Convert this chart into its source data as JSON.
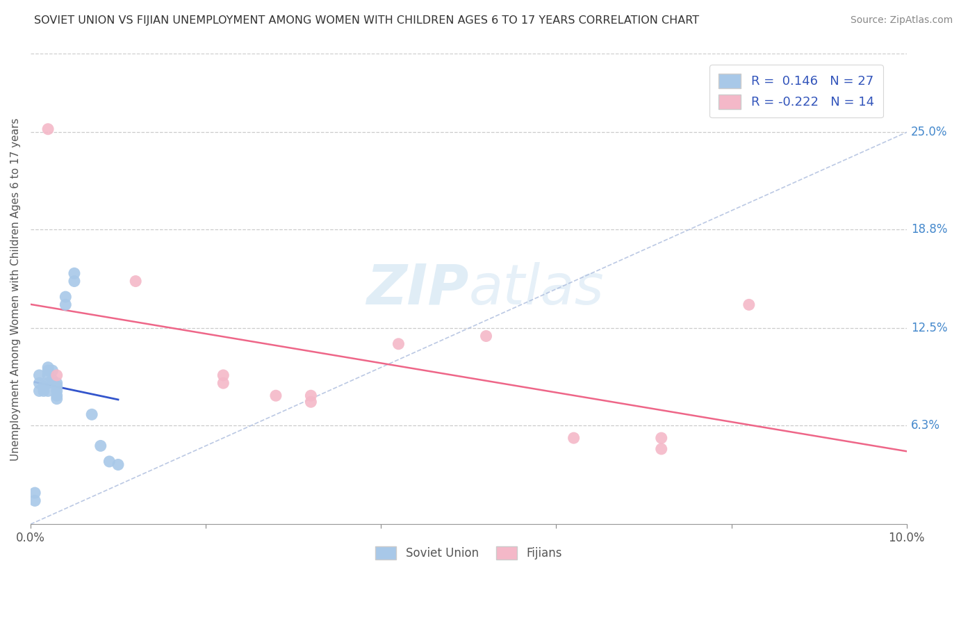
{
  "title": "SOVIET UNION VS FIJIAN UNEMPLOYMENT AMONG WOMEN WITH CHILDREN AGES 6 TO 17 YEARS CORRELATION CHART",
  "source": "Source: ZipAtlas.com",
  "ylabel": "Unemployment Among Women with Children Ages 6 to 17 years",
  "xlim": [
    0.0,
    0.1
  ],
  "ylim": [
    0.0,
    0.3
  ],
  "xticks": [
    0.0,
    0.02,
    0.04,
    0.06,
    0.08,
    0.1
  ],
  "xticklabels": [
    "0.0%",
    "",
    "",
    "",
    "",
    "10.0%"
  ],
  "ytick_right_labels": [
    "25.0%",
    "18.8%",
    "12.5%",
    "6.3%"
  ],
  "ytick_right_values": [
    0.25,
    0.188,
    0.125,
    0.063
  ],
  "grid_color": "#cccccc",
  "background_color": "#ffffff",
  "soviet_color": "#a8c8e8",
  "fijian_color": "#f4b8c8",
  "soviet_line_color": "#3355cc",
  "fijian_line_color": "#ee6688",
  "diag_line_color": "#aabbdd",
  "R_soviet": 0.146,
  "N_soviet": 27,
  "R_fijian": -0.222,
  "N_fijian": 14,
  "soviet_x": [
    0.0005,
    0.0005,
    0.001,
    0.001,
    0.001,
    0.0015,
    0.0015,
    0.002,
    0.002,
    0.002,
    0.002,
    0.002,
    0.0025,
    0.0025,
    0.003,
    0.003,
    0.003,
    0.003,
    0.003,
    0.004,
    0.004,
    0.005,
    0.005,
    0.007,
    0.008,
    0.009,
    0.01
  ],
  "soviet_y": [
    0.02,
    0.015,
    0.095,
    0.09,
    0.085,
    0.088,
    0.085,
    0.1,
    0.098,
    0.095,
    0.09,
    0.085,
    0.098,
    0.092,
    0.09,
    0.088,
    0.085,
    0.082,
    0.08,
    0.145,
    0.14,
    0.155,
    0.16,
    0.07,
    0.05,
    0.04,
    0.038
  ],
  "fijian_x": [
    0.002,
    0.003,
    0.012,
    0.022,
    0.022,
    0.028,
    0.032,
    0.032,
    0.042,
    0.052,
    0.062,
    0.072,
    0.072,
    0.082
  ],
  "fijian_y": [
    0.252,
    0.095,
    0.155,
    0.095,
    0.09,
    0.082,
    0.082,
    0.078,
    0.115,
    0.12,
    0.055,
    0.055,
    0.048,
    0.14
  ]
}
